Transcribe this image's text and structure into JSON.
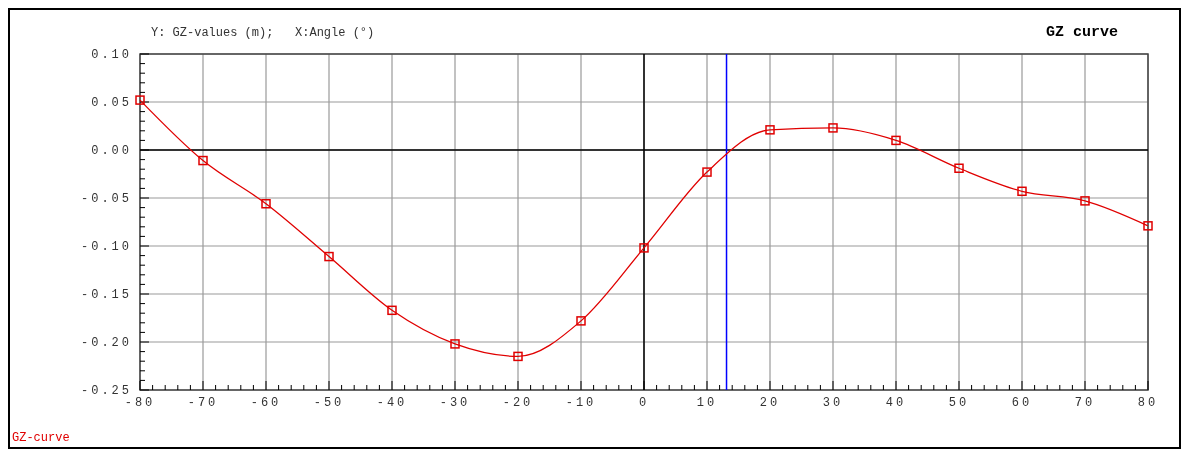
{
  "chart_data": {
    "type": "line",
    "title": "GZ curve",
    "subtitle": "Y: GZ-values (m);   X:Angle (°)",
    "x": [
      -80,
      -70,
      -60,
      -50,
      -40,
      -30,
      -20,
      -10,
      0,
      10,
      20,
      30,
      40,
      50,
      60,
      70,
      80
    ],
    "series": [
      {
        "name": "GZ-curve",
        "color": "#e00000",
        "values": [
          0.052,
          -0.011,
          -0.056,
          -0.111,
          -0.167,
          -0.202,
          -0.215,
          -0.178,
          -0.102,
          -0.023,
          0.021,
          0.023,
          0.01,
          -0.019,
          -0.043,
          -0.053,
          -0.079
        ]
      }
    ],
    "xlim": [
      -80,
      80
    ],
    "xticks": [
      -80,
      -70,
      -60,
      -50,
      -40,
      -30,
      -20,
      -10,
      0,
      10,
      20,
      30,
      40,
      50,
      60,
      70,
      80
    ],
    "ylim": [
      -0.25,
      0.1
    ],
    "yticks": [
      {
        "value": -0.25,
        "label": "-0.25"
      },
      {
        "value": -0.2,
        "label": "-0.20"
      },
      {
        "value": -0.15,
        "label": "-0.15"
      },
      {
        "value": -0.1,
        "label": "-0.10"
      },
      {
        "value": -0.05,
        "label": "-0.05"
      },
      {
        "value": 0,
        "label": "0.00"
      },
      {
        "value": 0.05,
        "label": "0.05"
      },
      {
        "value": 0.1,
        "label": "0.10"
      }
    ],
    "ref_lines": [
      {
        "axis": "x",
        "value": 13.1,
        "color": "#0000ff"
      }
    ],
    "grid": true,
    "legend": "bottom left",
    "marker": "square",
    "line_style": "solid"
  }
}
